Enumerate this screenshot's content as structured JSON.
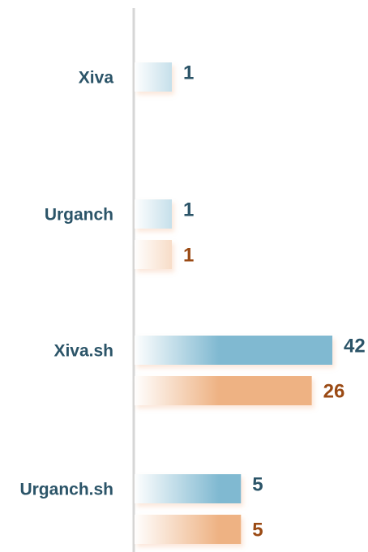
{
  "chart_data": {
    "type": "bar",
    "orientation": "horizontal",
    "categories": [
      "Xiva",
      "Urganch",
      "Xiva.sh",
      "Urganch.sh"
    ],
    "series": [
      {
        "color": "#80b9d1",
        "values": [
          1,
          1,
          42,
          5
        ]
      },
      {
        "color": "#eeb283",
        "values": [
          null,
          1,
          26,
          5
        ]
      }
    ]
  }
}
